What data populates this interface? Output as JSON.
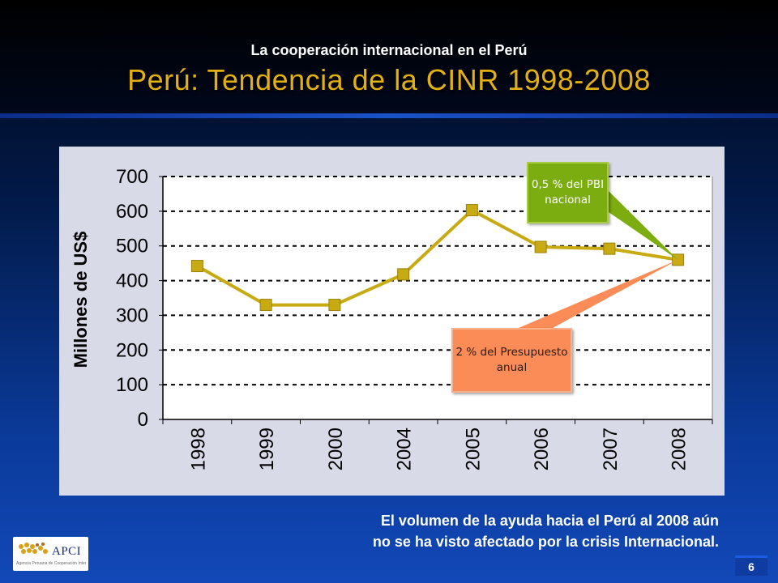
{
  "header": {
    "supertitle": "La cooperación  internacional en el Perú",
    "title": "Perú: Tendencia de la CINR 1998-2008"
  },
  "chart_data": {
    "type": "line",
    "ylabel": "Millones de US$",
    "xlabel": "",
    "categories": [
      "1998",
      "1999",
      "2000",
      "2004",
      "2005",
      "2006",
      "2007",
      "2008"
    ],
    "series": [
      {
        "values": [
          442,
          330,
          330,
          418,
          603,
          497,
          492,
          460
        ],
        "color": "#c8aa12"
      }
    ],
    "ylim": [
      0,
      700
    ],
    "yticks": [
      "0",
      "100",
      "200",
      "300",
      "400",
      "500",
      "600",
      "700"
    ],
    "grid": "dashed horizontal"
  },
  "callouts": {
    "gdp": "0,5 % del PBI nacional",
    "budget": "2 % del Presupuesto anual"
  },
  "footnote": "El volumen de la ayuda hacia el Perú al 2008 aún no se ha visto afectado por la crisis Internacional.",
  "logo": {
    "text": "APCI",
    "subtext": "Agencia Peruana de Cooperación Internacional"
  },
  "page_number": "6",
  "colors": {
    "title": "#e3b10f",
    "line": "#c8aa12",
    "callout_gdp": "#7cad10",
    "callout_budget": "#fb8c57",
    "panel": "#d9dae8"
  }
}
